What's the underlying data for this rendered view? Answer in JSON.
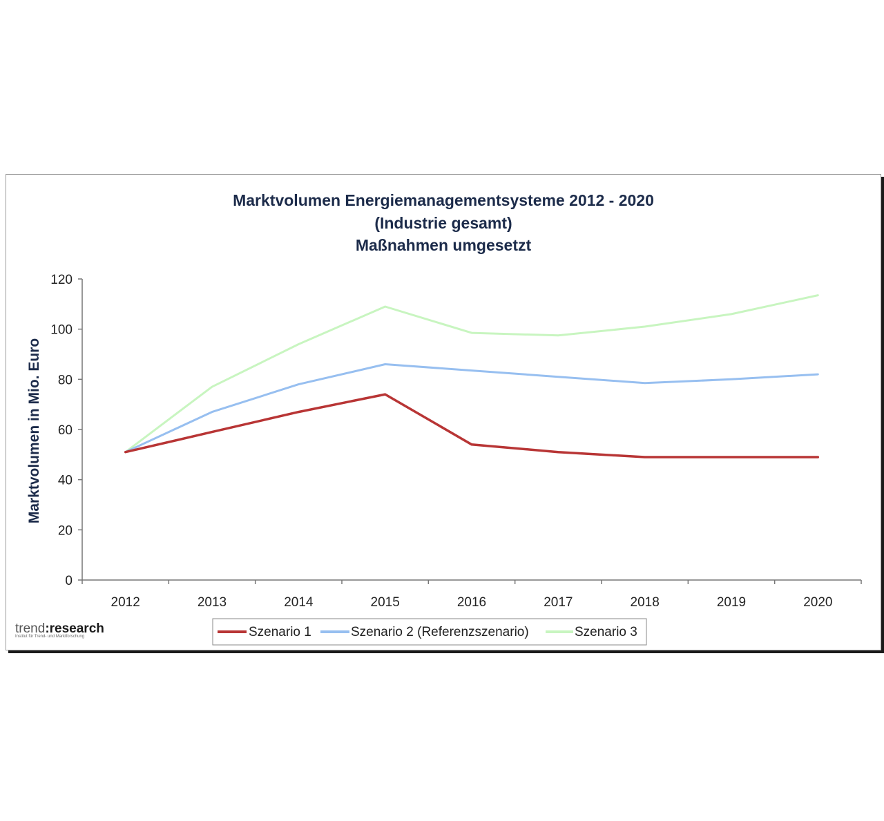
{
  "chart_data": {
    "type": "line",
    "title": [
      "Marktvolumen Energiemanagementsysteme  2012 - 2020",
      "(Industrie gesamt)",
      "Maßnahmen umgesetzt"
    ],
    "xlabel": "",
    "ylabel": "Marktvolumen in Mio. Euro",
    "categories": [
      "2012",
      "2013",
      "2014",
      "2015",
      "2016",
      "2017",
      "2018",
      "2019",
      "2020"
    ],
    "ylim": [
      0,
      120
    ],
    "yticks": [
      0,
      20,
      40,
      60,
      80,
      100,
      120
    ],
    "grid": false,
    "legend_position": "bottom",
    "series": [
      {
        "name": "Szenario 1",
        "color": "#b83535",
        "values": [
          51,
          59,
          67,
          74,
          54,
          51,
          49,
          49,
          49
        ]
      },
      {
        "name": "Szenario 2 (Referenzszenario)",
        "color": "#97bff0",
        "values": [
          51,
          67,
          78,
          86,
          83.5,
          81,
          78.5,
          80,
          82
        ]
      },
      {
        "name": "Szenario 3",
        "color": "#c8f5c0",
        "values": [
          51,
          77,
          94,
          109,
          98.5,
          97.5,
          101,
          106,
          113.5
        ]
      }
    ]
  },
  "logo": {
    "light": "trend",
    "separator": ":",
    "bold": "research",
    "tagline": "Institut für Trend- und Marktforschung"
  }
}
